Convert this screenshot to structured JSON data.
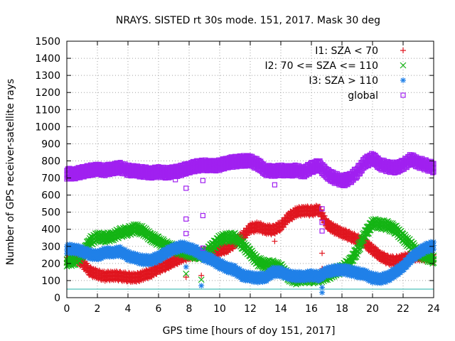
{
  "chart_data": {
    "type": "scatter",
    "title": "NRAYS. SISTED rt 30s mode. 151, 2017. Mask 30 deg",
    "xlabel": "GPS time [hours of doy 151, 2017]",
    "ylabel": "Number of GPS receiver-satellite rays",
    "xlim": [
      0,
      24
    ],
    "ylim": [
      0,
      1500
    ],
    "xticks": [
      0,
      2,
      4,
      6,
      8,
      10,
      12,
      14,
      16,
      18,
      20,
      22,
      24
    ],
    "yticks": [
      0,
      100,
      200,
      300,
      400,
      500,
      600,
      700,
      800,
      900,
      1000,
      1100,
      1200,
      1300,
      1400,
      1500
    ],
    "grid": "dotted",
    "legend_position": "top-right",
    "reference_line": {
      "y": 50,
      "color": "#20b2aa"
    },
    "series": [
      {
        "name": "I1: SZA < 70",
        "marker": "plus",
        "color": "#e0141e",
        "points": [
          [
            0,
            220
          ],
          [
            0.5,
            235
          ],
          [
            1,
            205
          ],
          [
            1.5,
            155
          ],
          [
            2,
            135
          ],
          [
            2.5,
            125
          ],
          [
            3,
            130
          ],
          [
            3.5,
            125
          ],
          [
            4,
            120
          ],
          [
            4.5,
            115
          ],
          [
            5,
            130
          ],
          [
            5.5,
            145
          ],
          [
            6,
            170
          ],
          [
            6.5,
            190
          ],
          [
            7,
            210
          ],
          [
            7.5,
            235
          ],
          [
            8,
            250
          ],
          [
            8.5,
            255
          ],
          [
            9,
            260
          ],
          [
            9.5,
            265
          ],
          [
            10,
            275
          ],
          [
            10.5,
            290
          ],
          [
            11,
            320
          ],
          [
            11.5,
            360
          ],
          [
            12,
            405
          ],
          [
            12.5,
            415
          ],
          [
            13,
            400
          ],
          [
            13.5,
            395
          ],
          [
            14,
            420
          ],
          [
            14.5,
            470
          ],
          [
            15,
            500
          ],
          [
            15.5,
            510
          ],
          [
            16,
            505
          ],
          [
            16.5,
            515
          ],
          [
            17,
            430
          ],
          [
            17.5,
            400
          ],
          [
            18,
            380
          ],
          [
            18.5,
            360
          ],
          [
            19,
            340
          ],
          [
            19.5,
            320
          ],
          [
            20,
            280
          ],
          [
            20.5,
            245
          ],
          [
            21,
            220
          ],
          [
            21.5,
            215
          ],
          [
            22,
            225
          ],
          [
            22.5,
            240
          ],
          [
            23,
            245
          ],
          [
            23.5,
            240
          ],
          [
            24,
            230
          ],
          [
            7.8,
            120
          ],
          [
            8.8,
            130
          ],
          [
            13.6,
            330
          ],
          [
            16.7,
            260
          ],
          [
            16.7,
            170
          ]
        ]
      },
      {
        "name": "I2: 70 <= SZA <= 110",
        "marker": "cross",
        "color": "#14b414",
        "points": [
          [
            0,
            210
          ],
          [
            0.5,
            215
          ],
          [
            1,
            250
          ],
          [
            1.5,
            330
          ],
          [
            2,
            355
          ],
          [
            2.5,
            350
          ],
          [
            3,
            360
          ],
          [
            3.5,
            380
          ],
          [
            4,
            390
          ],
          [
            4.5,
            405
          ],
          [
            5,
            390
          ],
          [
            5.5,
            355
          ],
          [
            6,
            330
          ],
          [
            6.5,
            305
          ],
          [
            7,
            285
          ],
          [
            7.5,
            275
          ],
          [
            8,
            260
          ],
          [
            8.5,
            250
          ],
          [
            9,
            255
          ],
          [
            9.5,
            295
          ],
          [
            10,
            340
          ],
          [
            10.5,
            355
          ],
          [
            11,
            350
          ],
          [
            11.5,
            310
          ],
          [
            12,
            260
          ],
          [
            12.5,
            210
          ],
          [
            13,
            195
          ],
          [
            13.5,
            190
          ],
          [
            14,
            175
          ],
          [
            14.5,
            120
          ],
          [
            15,
            105
          ],
          [
            15.5,
            115
          ],
          [
            16,
            110
          ],
          [
            16.5,
            115
          ],
          [
            17,
            125
          ],
          [
            17.5,
            150
          ],
          [
            18,
            170
          ],
          [
            18.5,
            205
          ],
          [
            19,
            275
          ],
          [
            19.5,
            370
          ],
          [
            20,
            435
          ],
          [
            20.5,
            430
          ],
          [
            21,
            420
          ],
          [
            21.5,
            400
          ],
          [
            22,
            350
          ],
          [
            22.5,
            310
          ],
          [
            23,
            260
          ],
          [
            23.5,
            240
          ],
          [
            24,
            225
          ],
          [
            7.8,
            140
          ],
          [
            8.8,
            105
          ],
          [
            16.7,
            110
          ]
        ]
      },
      {
        "name": "I3: SZA > 110",
        "marker": "star",
        "color": "#2080e8",
        "points": [
          [
            0,
            285
          ],
          [
            0.5,
            285
          ],
          [
            1,
            270
          ],
          [
            1.5,
            255
          ],
          [
            2,
            245
          ],
          [
            2.5,
            265
          ],
          [
            3,
            265
          ],
          [
            3.5,
            270
          ],
          [
            4,
            245
          ],
          [
            4.5,
            230
          ],
          [
            5,
            220
          ],
          [
            5.5,
            220
          ],
          [
            6,
            235
          ],
          [
            6.5,
            265
          ],
          [
            7,
            285
          ],
          [
            7.5,
            300
          ],
          [
            8,
            290
          ],
          [
            8.5,
            270
          ],
          [
            9,
            240
          ],
          [
            9.5,
            220
          ],
          [
            10,
            195
          ],
          [
            10.5,
            175
          ],
          [
            11,
            160
          ],
          [
            11.5,
            130
          ],
          [
            12,
            120
          ],
          [
            12.5,
            115
          ],
          [
            13,
            120
          ],
          [
            13.5,
            150
          ],
          [
            14,
            150
          ],
          [
            14.5,
            130
          ],
          [
            15,
            125
          ],
          [
            15.5,
            125
          ],
          [
            16,
            130
          ],
          [
            16.5,
            125
          ],
          [
            17,
            150
          ],
          [
            17.5,
            160
          ],
          [
            18,
            165
          ],
          [
            18.5,
            155
          ],
          [
            19,
            145
          ],
          [
            19.5,
            135
          ],
          [
            20,
            115
          ],
          [
            20.5,
            110
          ],
          [
            21,
            120
          ],
          [
            21.5,
            150
          ],
          [
            22,
            180
          ],
          [
            22.5,
            230
          ],
          [
            23,
            265
          ],
          [
            23.5,
            290
          ],
          [
            24,
            305
          ],
          [
            7.8,
            180
          ],
          [
            8.8,
            70
          ],
          [
            16.7,
            30
          ],
          [
            16.7,
            60
          ]
        ]
      },
      {
        "name": "global",
        "marker": "square",
        "color": "#a020f0",
        "points": [
          [
            0,
            725
          ],
          [
            0.5,
            725
          ],
          [
            1,
            735
          ],
          [
            1.5,
            745
          ],
          [
            2,
            750
          ],
          [
            2.5,
            745
          ],
          [
            3,
            755
          ],
          [
            3.5,
            760
          ],
          [
            4,
            745
          ],
          [
            4.5,
            740
          ],
          [
            5,
            735
          ],
          [
            5.5,
            730
          ],
          [
            6,
            735
          ],
          [
            6.5,
            730
          ],
          [
            7,
            735
          ],
          [
            7.5,
            745
          ],
          [
            8,
            760
          ],
          [
            8.5,
            770
          ],
          [
            9,
            775
          ],
          [
            9.5,
            770
          ],
          [
            10,
            775
          ],
          [
            10.5,
            790
          ],
          [
            11,
            795
          ],
          [
            11.5,
            800
          ],
          [
            12,
            800
          ],
          [
            12.5,
            780
          ],
          [
            13,
            745
          ],
          [
            13.5,
            740
          ],
          [
            14,
            745
          ],
          [
            14.5,
            740
          ],
          [
            15,
            745
          ],
          [
            15.5,
            735
          ],
          [
            16,
            760
          ],
          [
            16.5,
            775
          ],
          [
            17,
            725
          ],
          [
            17.5,
            700
          ],
          [
            18,
            685
          ],
          [
            18.5,
            695
          ],
          [
            19,
            735
          ],
          [
            19.5,
            790
          ],
          [
            20,
            815
          ],
          [
            20.5,
            780
          ],
          [
            21,
            765
          ],
          [
            21.5,
            760
          ],
          [
            22,
            775
          ],
          [
            22.5,
            810
          ],
          [
            23,
            790
          ],
          [
            23.5,
            775
          ],
          [
            24,
            760
          ],
          [
            7.1,
            690
          ],
          [
            7.8,
            640
          ],
          [
            7.8,
            460
          ],
          [
            7.8,
            375
          ],
          [
            8.9,
            480
          ],
          [
            8.9,
            685
          ],
          [
            8.9,
            290
          ],
          [
            13.6,
            660
          ],
          [
            16.7,
            520
          ],
          [
            16.7,
            440
          ],
          [
            16.7,
            390
          ],
          [
            18.2,
            655
          ]
        ]
      }
    ]
  }
}
